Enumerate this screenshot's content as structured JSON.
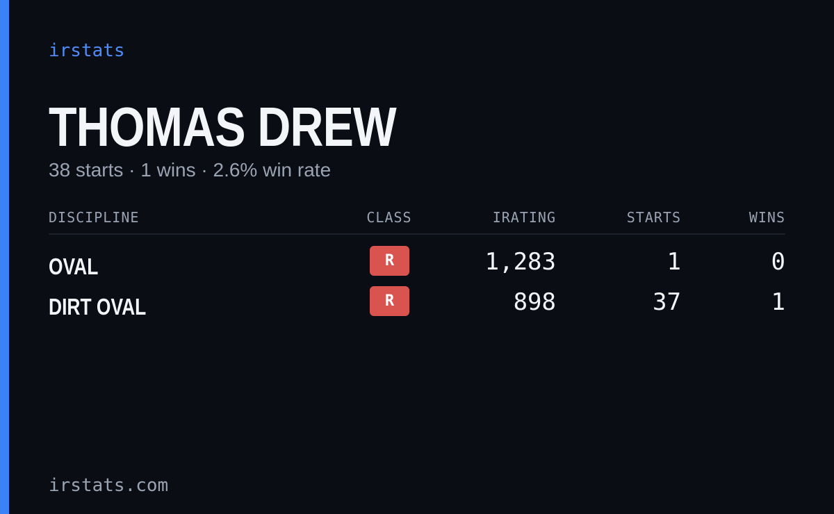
{
  "brand": "irstats",
  "driver": {
    "name": "THOMAS DREW",
    "summary": "38 starts · 1 wins · 2.6% win rate"
  },
  "table": {
    "headers": [
      "DISCIPLINE",
      "CLASS",
      "IRATING",
      "STARTS",
      "WINS"
    ],
    "rows": [
      [
        "OVAL",
        "R",
        "1,283",
        "1",
        "0"
      ],
      [
        "DIRT OVAL",
        "R",
        "898",
        "37",
        "1"
      ]
    ]
  },
  "footer": "irstats.com"
}
